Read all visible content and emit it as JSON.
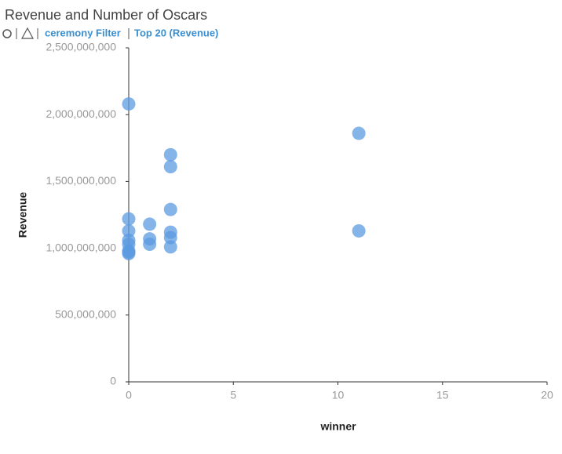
{
  "chart_data": {
    "type": "scatter",
    "title": "Revenue and Number of Oscars",
    "filters": [
      "ceremony Filter",
      "Top 20 (Revenue)"
    ],
    "xlabel": "winner",
    "ylabel": "Revenue",
    "color": "#5b9be0",
    "x": [
      0,
      0,
      0,
      0,
      0,
      0,
      0,
      0,
      1,
      1,
      1,
      2,
      2,
      2,
      2,
      2,
      2,
      11,
      11
    ],
    "values": [
      2080000000,
      1220000000,
      1130000000,
      1060000000,
      1030000000,
      980000000,
      970000000,
      960000000,
      1180000000,
      1070000000,
      1030000000,
      1700000000,
      1610000000,
      1290000000,
      1120000000,
      1080000000,
      1010000000,
      1860000000,
      1130000000
    ],
    "xlim": [
      0,
      20
    ],
    "xticks": [
      0,
      5,
      10,
      15,
      20
    ],
    "ylim": [
      0,
      2500000000
    ],
    "yticks": [
      0,
      {
        "value": 500000000,
        "label": "500,000,000"
      },
      {
        "value": 1000000000,
        "label": "1,000,000,000"
      },
      {
        "value": 1500000000,
        "label": "1,500,000,000"
      },
      {
        "value": 2000000000,
        "label": "2,000,000,000"
      },
      {
        "value": 2500000000,
        "label": "2,500,000,000"
      }
    ]
  }
}
